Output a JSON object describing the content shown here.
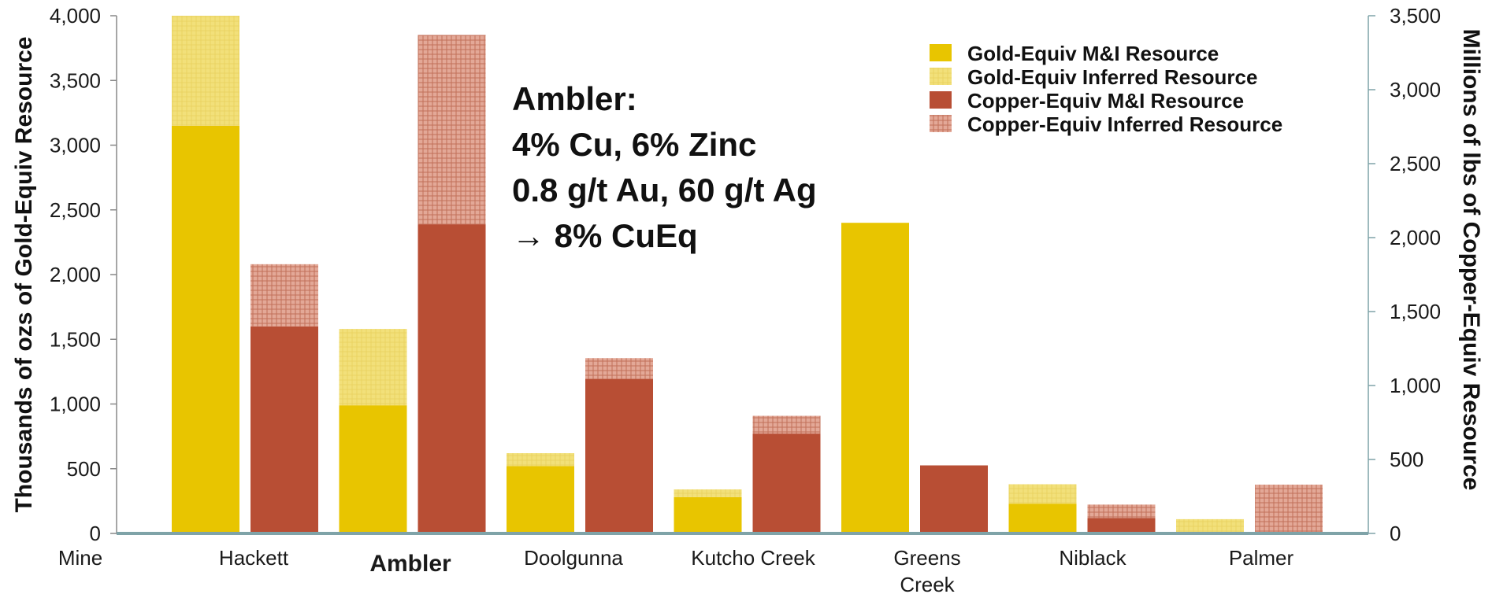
{
  "chart_data": {
    "type": "bar",
    "title": "",
    "categories": [
      "Hackett",
      "Ambler",
      "Doolgunna",
      "Kutcho Creek",
      "Greens Creek",
      "Niblack",
      "Palmer"
    ],
    "category_axis_label": "Mine",
    "emphasized_category": "Ambler",
    "left_axis": {
      "label": "Thousands of ozs of Gold-Equiv  Resource",
      "ylim": [
        0,
        4000
      ],
      "ticks": [
        "0",
        "500",
        "1,000",
        "1,500",
        "2,000",
        "2,500",
        "3,000",
        "3,500",
        "4,000"
      ],
      "tick_values": [
        0,
        500,
        1000,
        1500,
        2000,
        2500,
        3000,
        3500,
        4000
      ]
    },
    "right_axis": {
      "label": "Millions of lbs of Copper-Equiv  Resource",
      "ylim": [
        0,
        3500
      ],
      "ticks": [
        "0",
        "500",
        "1,000",
        "1,500",
        "2,000",
        "2,500",
        "3,000",
        "3,500"
      ],
      "tick_values": [
        0,
        500,
        1000,
        1500,
        2000,
        2500,
        3000,
        3500
      ]
    },
    "series": [
      {
        "name": "Gold-Equiv M&I Resource",
        "axis": "left",
        "group": "gold",
        "color": "#E8C500",
        "values": [
          3150,
          990,
          520,
          280,
          2400,
          230,
          0
        ]
      },
      {
        "name": "Gold-Equiv Inferred Resource",
        "axis": "left",
        "group": "gold",
        "color": "#F2E07A",
        "values": [
          850,
          590,
          100,
          60,
          0,
          150,
          110
        ]
      },
      {
        "name": "Copper-Equiv M&I Resource",
        "axis": "right",
        "group": "copper",
        "color": "#B84E34",
        "values": [
          1400,
          2090,
          1045,
          675,
          460,
          105,
          0
        ]
      },
      {
        "name": "Copper-Equiv Inferred Resource",
        "axis": "right",
        "group": "copper",
        "color": "#D9907A",
        "values": [
          420,
          1280,
          140,
          120,
          0,
          90,
          330
        ]
      }
    ],
    "legend_position": "top-right",
    "grid": false,
    "annotation": {
      "lines": [
        "Ambler:",
        "4% Cu, 6% Zinc",
        "0.8 g/t Au, 60 g/t Ag",
        "→ 8% CuEq"
      ]
    }
  }
}
